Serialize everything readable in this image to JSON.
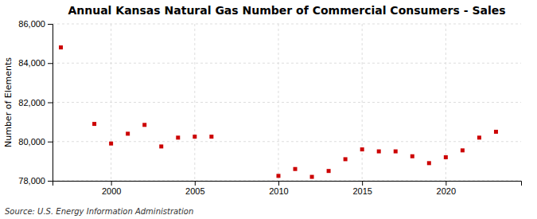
{
  "chart_data": {
    "type": "scatter",
    "title": "Annual Kansas Natural Gas Number of Commercial Consumers - Sales",
    "ylabel": "Number of Elements",
    "source": "Source: U.S. Energy Information Administration",
    "x": [
      1997,
      1999,
      2000,
      2001,
      2002,
      2003,
      2004,
      2005,
      2006,
      2010,
      2011,
      2012,
      2013,
      2014,
      2015,
      2016,
      2017,
      2018,
      2019,
      2020,
      2021,
      2022,
      2023
    ],
    "values": [
      84800,
      80900,
      79900,
      80400,
      80850,
      79750,
      80200,
      80250,
      80250,
      78250,
      78600,
      78200,
      78500,
      79100,
      79600,
      79500,
      79500,
      79250,
      78900,
      79200,
      79550,
      80200,
      80500
    ],
    "color": "#cc0000",
    "marker": "square",
    "xlim": [
      1996.5,
      2024.5
    ],
    "xticks": [
      2000,
      2005,
      2010,
      2015,
      2020
    ],
    "ylim": [
      78000,
      86000
    ],
    "yticks": [
      {
        "value": 78000,
        "label": "78,000"
      },
      {
        "value": 80000,
        "label": "80,000"
      },
      {
        "value": 82000,
        "label": "82,000"
      },
      {
        "value": 84000,
        "label": "84,000"
      },
      {
        "value": 86000,
        "label": "86,000"
      }
    ],
    "grid": true
  }
}
